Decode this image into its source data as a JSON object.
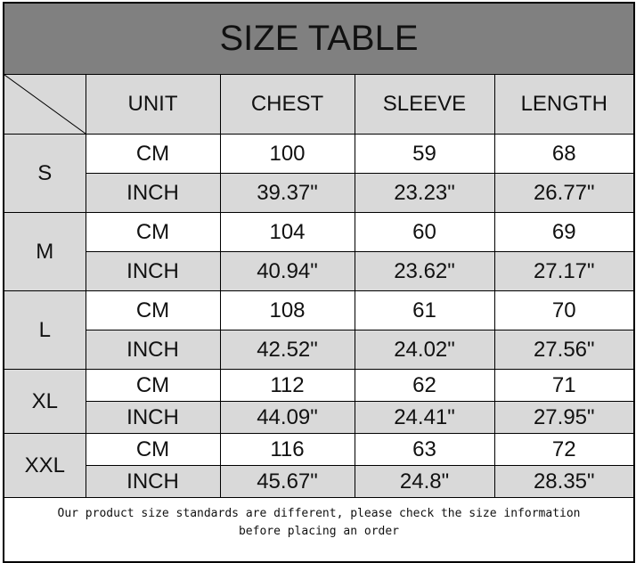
{
  "title": "SIZE TABLE",
  "headers": [
    "UNIT",
    "CHEST",
    "SLEEVE",
    "LENGTH"
  ],
  "rows": [
    {
      "size": "S",
      "cm": {
        "unit": "CM",
        "chest": "100",
        "sleeve": "59",
        "length": "68"
      },
      "inch": {
        "unit": "INCH",
        "chest": "39.37\"",
        "sleeve": "23.23\"",
        "length": "26.77\""
      }
    },
    {
      "size": "M",
      "cm": {
        "unit": "CM",
        "chest": "104",
        "sleeve": "60",
        "length": "69"
      },
      "inch": {
        "unit": "INCH",
        "chest": "40.94\"",
        "sleeve": "23.62\"",
        "length": "27.17\""
      }
    },
    {
      "size": "L",
      "cm": {
        "unit": "CM",
        "chest": "108",
        "sleeve": "61",
        "length": "70"
      },
      "inch": {
        "unit": "INCH",
        "chest": "42.52\"",
        "sleeve": "24.02\"",
        "length": "27.56\""
      }
    },
    {
      "size": "XL",
      "cm": {
        "unit": "CM",
        "chest": "112",
        "sleeve": "62",
        "length": "71"
      },
      "inch": {
        "unit": "INCH",
        "chest": "44.09\"",
        "sleeve": "24.41\"",
        "length": "27.95\""
      }
    },
    {
      "size": "XXL",
      "cm": {
        "unit": "CM",
        "chest": "116",
        "sleeve": "63",
        "length": "72"
      },
      "inch": {
        "unit": "INCH",
        "chest": "45.67\"",
        "sleeve": "24.8\"",
        "length": "28.35\""
      }
    }
  ],
  "note": {
    "line1": "Our product size standards are different, please check the size information",
    "line2": "before placing an order"
  },
  "colors": {
    "title_bg": "#808080",
    "header_bg": "#d9d9d9",
    "inch_row_bg": "#d9d9d9"
  }
}
